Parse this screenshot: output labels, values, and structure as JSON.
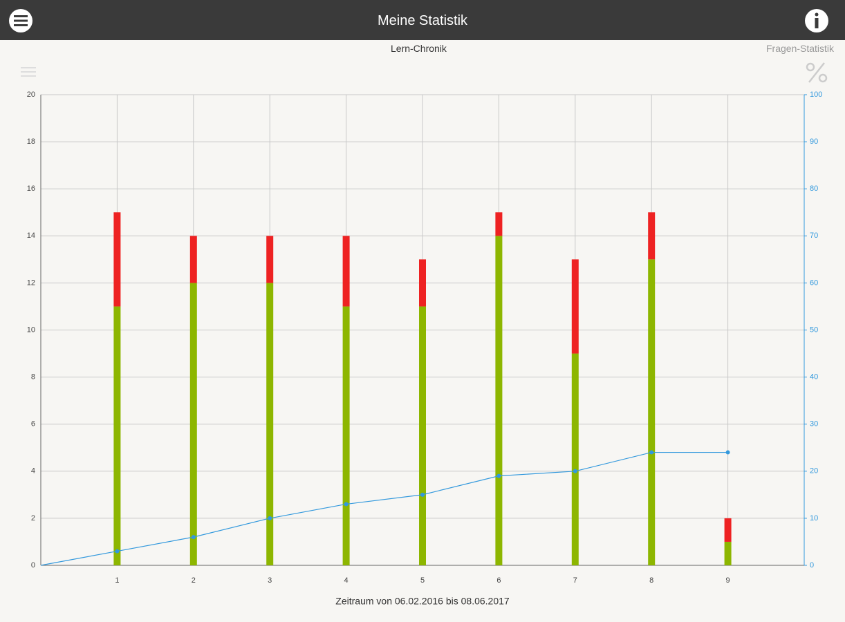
{
  "header": {
    "title": "Meine Statistik"
  },
  "tabs": [
    "Lern-Chronik",
    "Fragen-Statistik"
  ],
  "chart_data": {
    "type": "bar",
    "stacked": true,
    "x": [
      1,
      2,
      3,
      4,
      5,
      6,
      7,
      8,
      9
    ],
    "xlabel": "Zeitraum von 06.02.2016 bis 08.06.2017",
    "xlim": [
      0,
      10
    ],
    "xticks": [
      1,
      2,
      3,
      4,
      5,
      6,
      7,
      8,
      9
    ],
    "ylim": [
      0,
      20
    ],
    "yticks": [
      0,
      2,
      4,
      6,
      8,
      10,
      12,
      14,
      16,
      18,
      20
    ],
    "y2lim": [
      0,
      100
    ],
    "y2ticks": [
      0,
      10,
      20,
      30,
      40,
      50,
      60,
      70,
      80,
      90,
      100
    ],
    "grid": true,
    "series": [
      {
        "type": "bar",
        "color": "#8db600",
        "values": [
          11,
          12,
          12,
          11,
          11,
          14,
          9,
          13,
          1
        ]
      },
      {
        "type": "bar",
        "color": "#ee2222",
        "values": [
          4,
          2,
          2,
          3,
          2,
          1,
          4,
          2,
          1
        ]
      },
      {
        "type": "line",
        "axis": "y2",
        "color": "#3399dd",
        "x": [
          0,
          1,
          2,
          3,
          4,
          5,
          6,
          7,
          8,
          9
        ],
        "values": [
          0,
          3,
          6,
          10,
          13,
          15,
          19,
          20,
          24,
          24
        ]
      }
    ]
  }
}
